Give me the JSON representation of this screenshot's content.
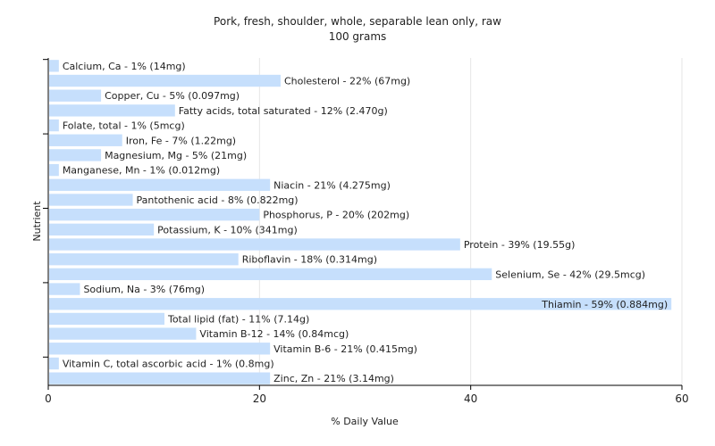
{
  "chart_data": {
    "type": "bar",
    "orientation": "horizontal",
    "title": "Pork, fresh, shoulder, whole, separable lean only, raw",
    "subtitle": "100 grams",
    "xlabel": "% Daily Value",
    "ylabel": "Nutrient",
    "xlim": [
      0,
      60
    ],
    "xticks": [
      0,
      20,
      40,
      60
    ],
    "grid": true,
    "bar_color": "#c6dffc",
    "categories": [
      "Calcium, Ca",
      "Cholesterol",
      "Copper, Cu",
      "Fatty acids, total saturated",
      "Folate, total",
      "Iron, Fe",
      "Magnesium, Mg",
      "Manganese, Mn",
      "Niacin",
      "Pantothenic acid",
      "Phosphorus, P",
      "Potassium, K",
      "Protein",
      "Riboflavin",
      "Selenium, Se",
      "Sodium, Na",
      "Thiamin",
      "Total lipid (fat)",
      "Vitamin B-12",
      "Vitamin B-6",
      "Vitamin C, total ascorbic acid",
      "Zinc, Zn"
    ],
    "values": [
      1,
      22,
      5,
      12,
      1,
      7,
      5,
      1,
      21,
      8,
      20,
      10,
      39,
      18,
      42,
      3,
      59,
      11,
      14,
      21,
      1,
      21
    ],
    "labels": [
      "Calcium, Ca - 1% (14mg)",
      "Cholesterol - 22% (67mg)",
      "Copper, Cu - 5% (0.097mg)",
      "Fatty acids, total saturated - 12% (2.470g)",
      "Folate, total - 1% (5mcg)",
      "Iron, Fe - 7% (1.22mg)",
      "Magnesium, Mg - 5% (21mg)",
      "Manganese, Mn - 1% (0.012mg)",
      "Niacin - 21% (4.275mg)",
      "Pantothenic acid - 8% (0.822mg)",
      "Phosphorus, P - 20% (202mg)",
      "Potassium, K - 10% (341mg)",
      "Protein - 39% (19.55g)",
      "Riboflavin - 18% (0.314mg)",
      "Selenium, Se - 42% (29.5mcg)",
      "Sodium, Na - 3% (76mg)",
      "Thiamin - 59% (0.884mg)",
      "Total lipid (fat) - 11% (7.14g)",
      "Vitamin B-12 - 14% (0.84mcg)",
      "Vitamin B-6 - 21% (0.415mg)",
      "Vitamin C, total ascorbic acid - 1% (0.8mg)",
      "Zinc, Zn - 21% (3.14mg)"
    ]
  }
}
